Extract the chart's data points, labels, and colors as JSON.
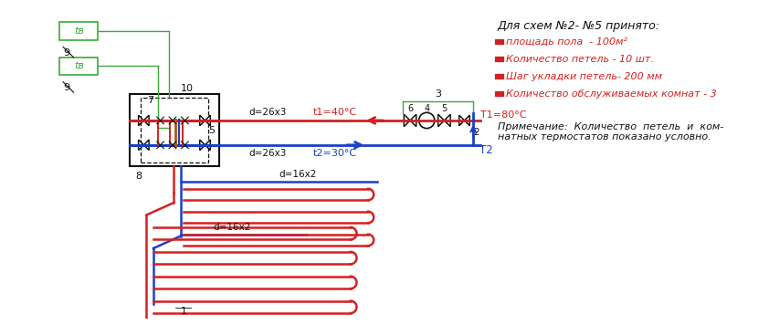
{
  "bg_color": "#ffffff",
  "red_color": "#d42020",
  "blue_color": "#1a40c8",
  "green_color": "#3aaa3a",
  "dark_color": "#111111",
  "orange_color": "#b05800",
  "title_text": "Для схем №2- №5 принято:",
  "bullet1": "площадь пола  - 100м²",
  "bullet2": "Количество петель - 10 шт.",
  "bullet3": "Шаг укладки петель- 200 мм",
  "bullet4": "Количество обслуживаемых комнат - 3",
  "note": "Примечание:  Количество  петель  и  ком-\nнатных термостатов показано условно.",
  "label_d26x3_top": "d=26x3",
  "label_t1": "t1=40°C",
  "label_d26x3_bot": "d=26x3",
  "label_t2_val": "t2=30°C",
  "label_d16x2_top": "d=16x2",
  "label_d16x2_bot": "d=16x2",
  "label_T1": "T1=80°C",
  "label_T2": "T2",
  "tb_label": "tв"
}
